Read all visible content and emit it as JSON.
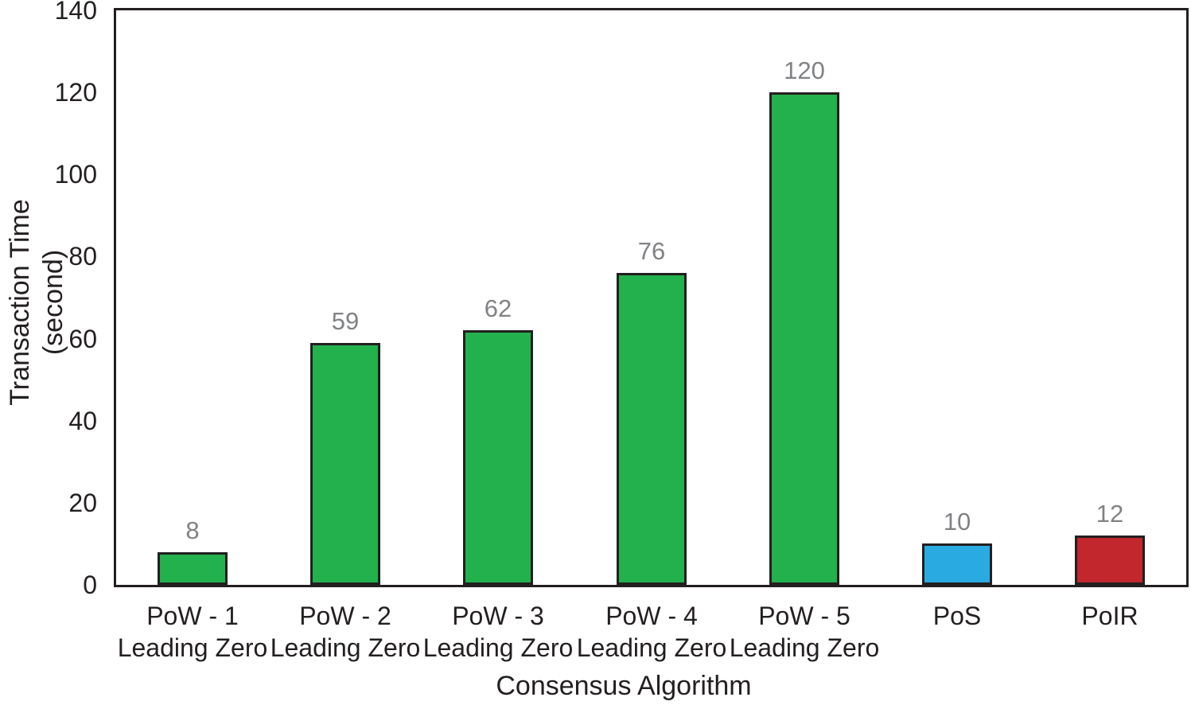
{
  "chart_data": {
    "type": "bar",
    "title": "",
    "xlabel": "Consensus Algorithm",
    "ylabel": "Transaction Time (second)",
    "ylabel_lines": [
      "Transaction Time",
      "(second)"
    ],
    "categories": [
      "PoW - 1\nLeading Zero",
      "PoW - 2\nLeading Zero",
      "PoW - 3\nLeading Zero",
      "PoW - 4\nLeading Zero",
      "PoW - 5\nLeading Zero",
      "PoS",
      "PoIR"
    ],
    "values": [
      8,
      59,
      62,
      76,
      120,
      10,
      12
    ],
    "value_labels": [
      "8",
      "59",
      "62",
      "76",
      "120",
      "10",
      "12"
    ],
    "bar_colors": [
      "#22b14c",
      "#22b14c",
      "#22b14c",
      "#22b14c",
      "#22b14c",
      "#29abe2",
      "#c1272d"
    ],
    "yticks": [
      0,
      20,
      40,
      60,
      80,
      100,
      120,
      140
    ],
    "ylim": [
      0,
      140
    ],
    "grid": false,
    "legend": false,
    "colors": {
      "axis": "#231f20",
      "tick_text": "#231f20",
      "value_label_text": "#808285",
      "background": "#ffffff"
    }
  }
}
